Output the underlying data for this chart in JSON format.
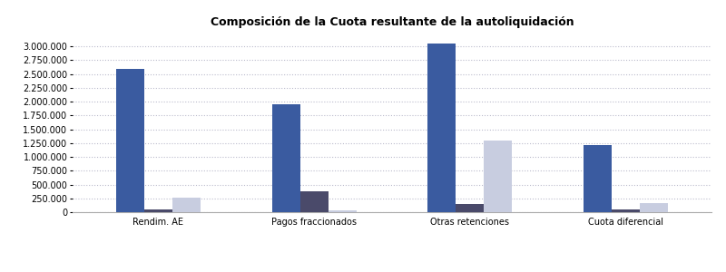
{
  "title": "Composición de la Cuota resultante de la autoliquidación",
  "categories": [
    "Rendim. AE",
    "Pagos fraccionados",
    "Otras retenciones",
    "Cuota diferencial"
  ],
  "series": {
    "Directa": [
      2600000,
      1950000,
      3050000,
      1220000
    ],
    "Objetiva no agrícola": [
      55000,
      370000,
      150000,
      55000
    ],
    "Objetiva agrícola": [
      270000,
      40000,
      1300000,
      165000
    ]
  },
  "colors": {
    "Directa": "#3A5BA0",
    "Objetiva no agrícola": "#4A4A6A",
    "Objetiva agrícola": "#C8CDE0"
  },
  "ylim": [
    0,
    3250000
  ],
  "yticks": [
    0,
    250000,
    500000,
    750000,
    1000000,
    1250000,
    1500000,
    1750000,
    2000000,
    2250000,
    2500000,
    2750000,
    3000000
  ],
  "background_color": "#FFFFFF",
  "plot_bg_color": "#F0F0F5",
  "grid_color": "#BBBBCC",
  "title_fontsize": 9,
  "legend_fontsize": 7.5,
  "tick_fontsize": 7
}
